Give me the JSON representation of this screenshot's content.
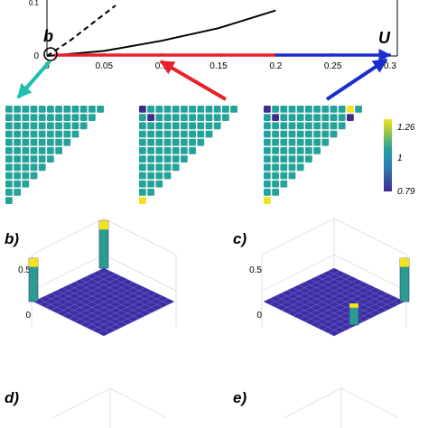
{
  "figure": {
    "panel_labels": {
      "b": "b)",
      "c": "c)",
      "d": "d)",
      "e": "e)"
    },
    "point_labels": {
      "b": "b",
      "U": "U"
    }
  },
  "chart_data": [
    {
      "type": "line",
      "panel": "a",
      "xlim": [
        0,
        0.3
      ],
      "x_ticks": [
        0,
        0.05,
        0.1,
        0.15,
        0.2,
        0.25,
        0.3
      ],
      "x_tick_labels": [
        "0",
        "0.05",
        "0.1",
        "0.15",
        "0.2",
        "0.25",
        "0.3"
      ],
      "y_tick_labels": [
        "0",
        "0.1"
      ],
      "series": [
        {
          "style": "solid",
          "x": [
            0,
            0.05,
            0.1,
            0.15,
            0.2
          ],
          "y": [
            0,
            0.01,
            0.03,
            0.055,
            0.09
          ]
        },
        {
          "style": "dashed",
          "x": [
            0,
            0.02,
            0.04,
            0.06
          ],
          "y": [
            0,
            0.03,
            0.065,
            0.1
          ]
        }
      ],
      "axis_segments": [
        {
          "color": "#e8202a",
          "x": [
            0,
            0.2
          ]
        },
        {
          "color": "#1a2ed0",
          "x": [
            0.2,
            0.3
          ]
        }
      ],
      "points": [
        {
          "label": "b",
          "x": 0
        },
        {
          "label": "U",
          "x": 0.3
        }
      ],
      "arrows_to_maps": [
        {
          "from_x": 0,
          "color": "#1fbfb0"
        },
        {
          "from_x": 0.1,
          "color": "#e8202a"
        },
        {
          "from_x": 0.3,
          "color": "#1a2ed0"
        }
      ]
    },
    {
      "type": "heatmap",
      "panel": "maps",
      "colorbar": {
        "ticks": [
          "1.26",
          "1",
          "0.79"
        ],
        "min": 0.79,
        "max": 1.26
      },
      "colors": {
        "low": "#3e2c8f",
        "mid": "#25a39a",
        "high": "#f4e21e"
      },
      "maps": [
        {
          "name": "map-b",
          "anomalies": []
        },
        {
          "name": "map-red",
          "anomalies": [
            {
              "row": 0,
              "col": 0,
              "v": 0.79
            },
            {
              "row": 1,
              "col": 1,
              "v": 0.79
            },
            {
              "row": 11,
              "col": 0,
              "v": 1.26
            }
          ]
        },
        {
          "name": "map-blue",
          "anomalies": [
            {
              "row": 0,
              "col": 0,
              "v": 0.79
            },
            {
              "row": 1,
              "col": 1,
              "v": 0.79
            },
            {
              "row": 0,
              "col": 10,
              "v": 1.26
            },
            {
              "row": 1,
              "col": 10,
              "v": 0.85
            },
            {
              "row": 2,
              "col": 10,
              "v": 0.85
            },
            {
              "row": 11,
              "col": 0,
              "v": 1.26
            }
          ]
        }
      ]
    },
    {
      "type": "bar3d",
      "panel": "b",
      "z_ticks": [
        "0",
        "0.5"
      ],
      "peaks": [
        {
          "position": "back corner",
          "height": 0.55
        },
        {
          "position": "left corner",
          "height": 0.5
        }
      ]
    },
    {
      "type": "bar3d",
      "panel": "c",
      "z_ticks": [
        "0",
        "0.5"
      ],
      "peaks": [
        {
          "position": "right corner",
          "height": 0.5
        },
        {
          "position": "front center",
          "height": 0.25
        }
      ]
    }
  ]
}
